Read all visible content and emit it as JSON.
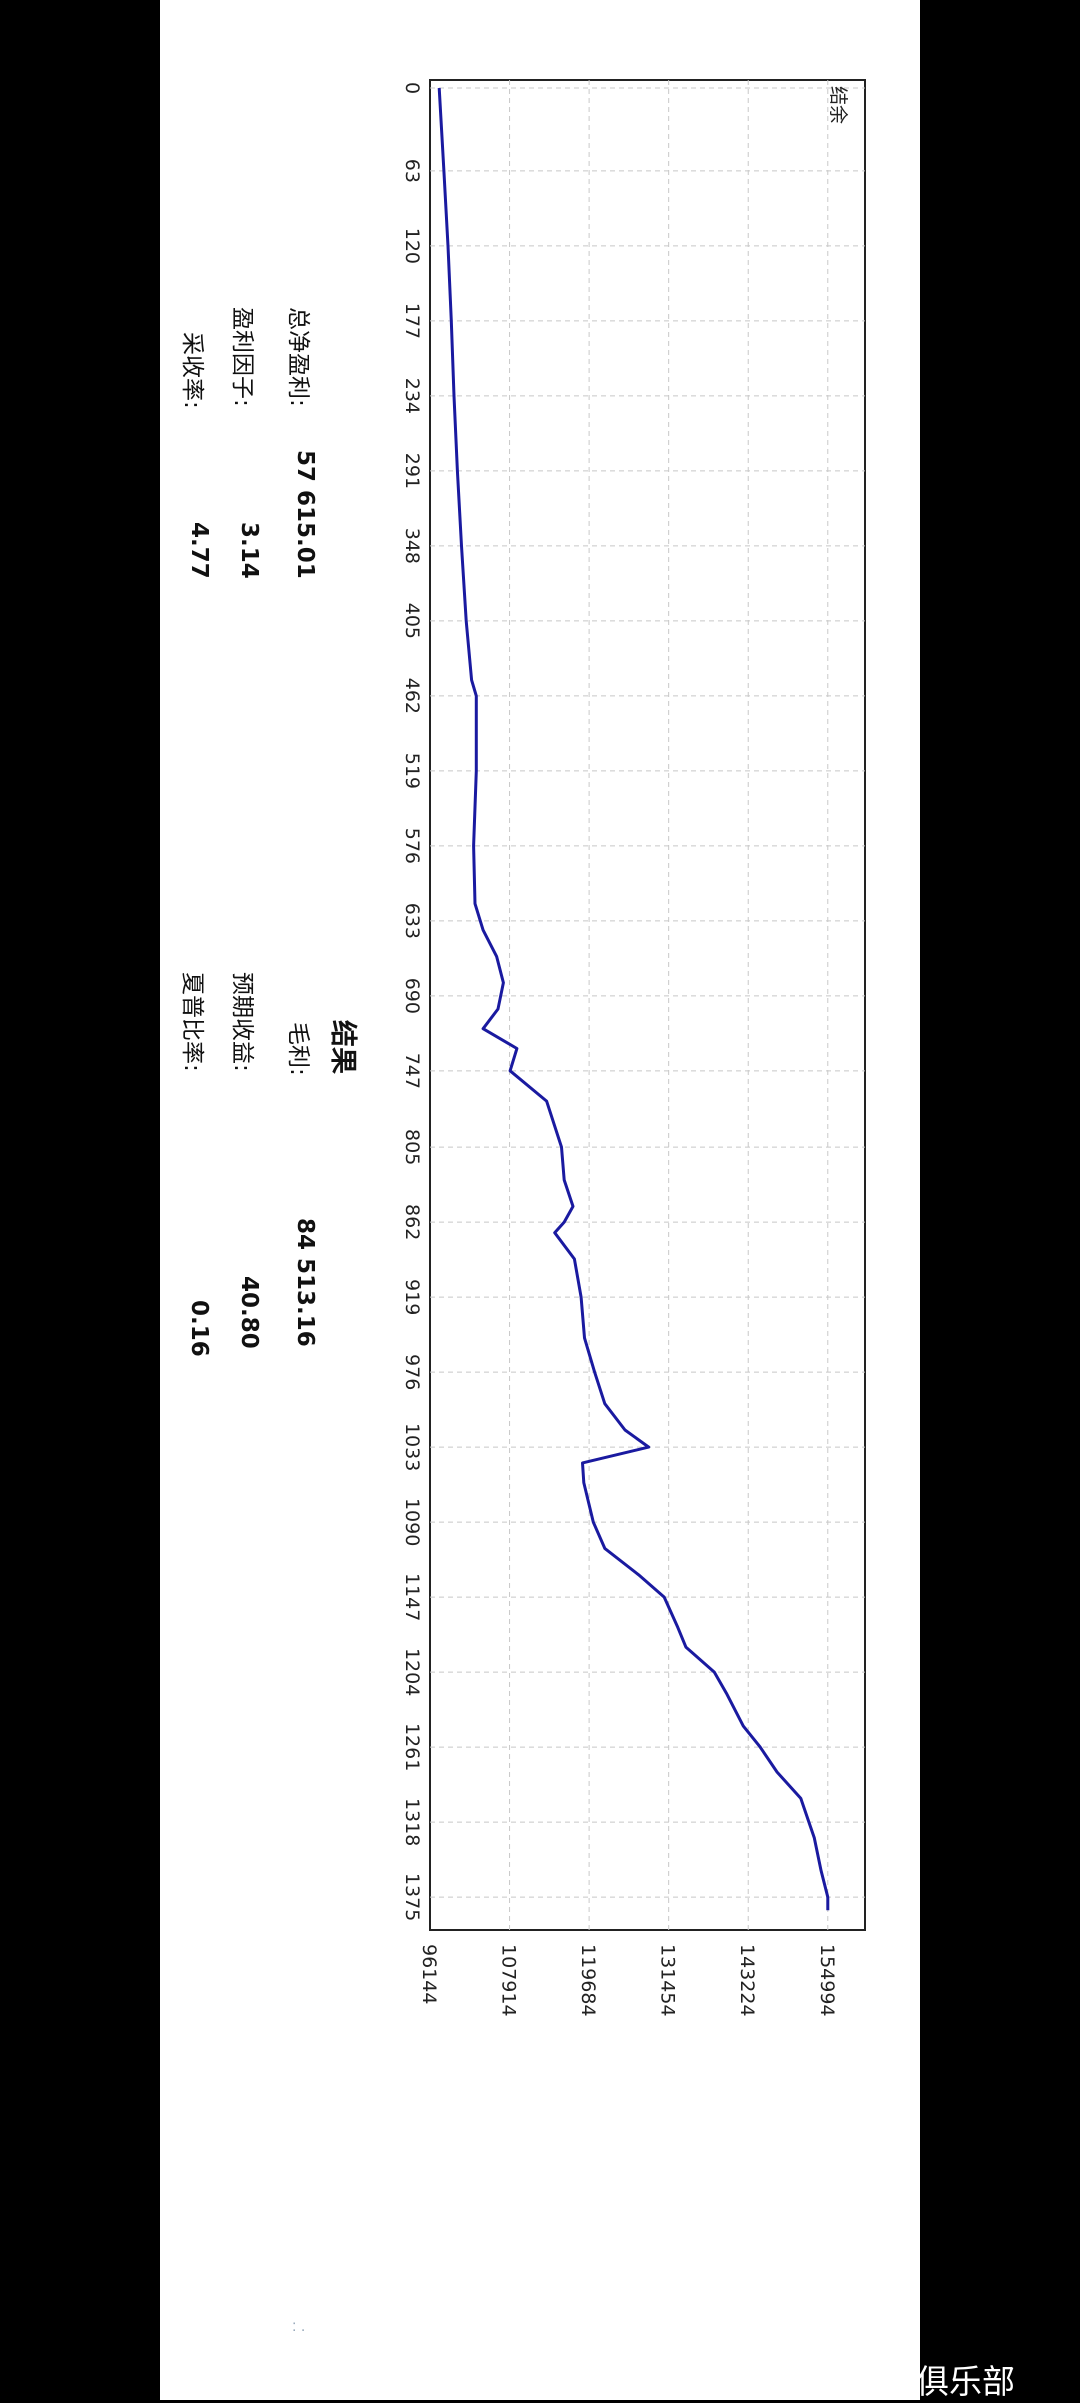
{
  "chart_data": {
    "type": "line",
    "title": "结余",
    "xlabel": "",
    "ylabel": "",
    "x_ticks": [
      0,
      63,
      120,
      177,
      234,
      291,
      348,
      405,
      462,
      519,
      576,
      633,
      690,
      747,
      805,
      862,
      919,
      976,
      1033,
      1090,
      1147,
      1204,
      1261,
      1318,
      1375
    ],
    "y_ticks": [
      96144,
      107914,
      119684,
      131454,
      143224,
      154994
    ],
    "xlim": [
      0,
      1400
    ],
    "ylim": [
      96144,
      160500
    ],
    "grid": true,
    "series": [
      {
        "name": "",
        "color": "#1a1aa0",
        "x": [
          0,
          63,
          120,
          177,
          234,
          291,
          348,
          405,
          450,
          462,
          519,
          576,
          620,
          640,
          660,
          680,
          700,
          715,
          730,
          747,
          770,
          805,
          830,
          850,
          862,
          870,
          890,
          919,
          950,
          976,
          1000,
          1020,
          1033,
          1045,
          1060,
          1090,
          1110,
          1130,
          1147,
          1170,
          1185,
          1204,
          1220,
          1245,
          1261,
          1280,
          1300,
          1318,
          1330,
          1355,
          1375,
          1385
        ],
        "y": [
          97500,
          98200,
          98800,
          99300,
          99700,
          100200,
          100800,
          101500,
          102300,
          103000,
          103000,
          102600,
          102800,
          104000,
          106000,
          107000,
          106200,
          104000,
          109000,
          108000,
          113400,
          115600,
          116000,
          117300,
          116000,
          114600,
          117500,
          118500,
          119000,
          120500,
          122000,
          125000,
          128500,
          118700,
          118900,
          120300,
          122000,
          127000,
          130800,
          132800,
          134000,
          138200,
          140000,
          142500,
          145000,
          147500,
          151000,
          152200,
          153000,
          154000,
          155000,
          155000
        ]
      }
    ]
  },
  "results": {
    "header": "结果",
    "net_profit_label": "总净盈利:",
    "net_profit_value": "57 615.01",
    "gross_profit_label": "毛利:",
    "gross_profit_value": "84 513.16",
    "profit_factor_label": "盈利因子:",
    "profit_factor_value": "3.14",
    "expected_payoff_label": "预期收益:",
    "expected_payoff_value": "40.80",
    "recovery_factor_label": "采收率:",
    "recovery_factor_value": "4.77",
    "sharpe_ratio_label": "夏普比率:",
    "sharpe_ratio_value": "0.16"
  },
  "watermark": "♪@智能交易俱乐部",
  "colors": {
    "line": "#1a1aa0",
    "grid": "#c8c8c8",
    "frame": "#222222",
    "page_bg": "#ffffff",
    "outer_bg": "#000000"
  }
}
